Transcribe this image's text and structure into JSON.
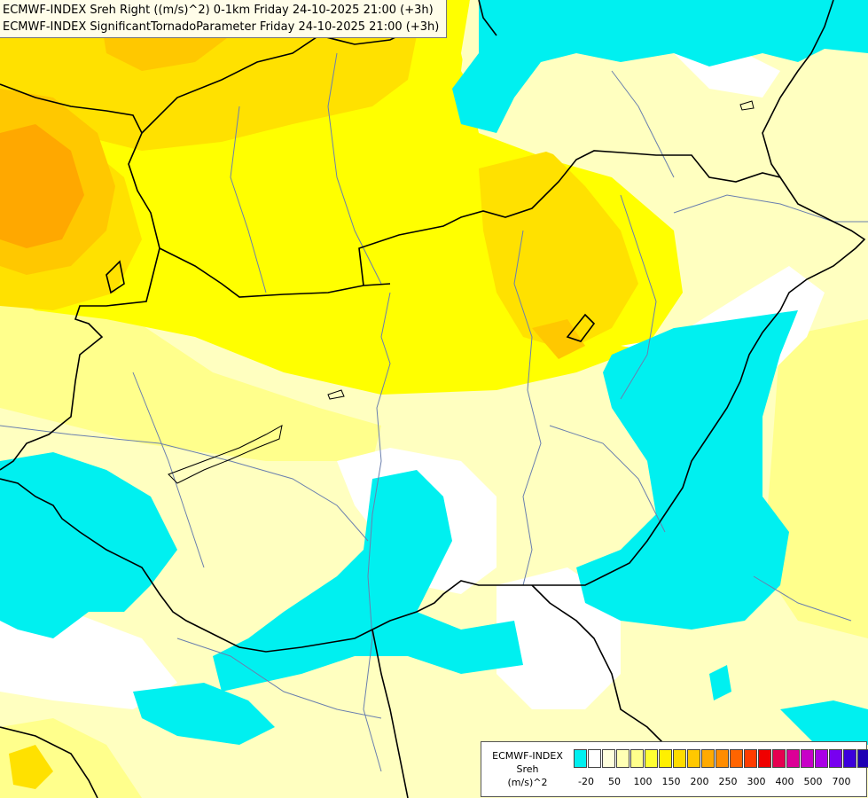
{
  "title": {
    "line1": "ECMWF-INDEX Sreh Right ((m/s)^2) 0-1km Friday 24-10-2025 21:00 (+3h)",
    "line2": "ECMWF-INDEX SignificantTornadoParameter Friday 24-10-2025 21:00 (+3h)"
  },
  "legend": {
    "source": "ECMWF-INDEX",
    "variable": "Sreh",
    "unit": "(m/s)^2",
    "colors": [
      "#00f0f0",
      "#ffffff",
      "#ffffdc",
      "#ffffb4",
      "#ffff8c",
      "#ffff32",
      "#fff000",
      "#ffdc00",
      "#ffc800",
      "#ffaa00",
      "#ff8c00",
      "#ff6400",
      "#ff3c00",
      "#f00000",
      "#e60050",
      "#dc0096",
      "#c800c8",
      "#aa00e6",
      "#7800f0",
      "#3c00dc",
      "#1e00b4",
      "#00008c"
    ],
    "ticks": [
      "-20",
      "50",
      "100",
      "150",
      "200",
      "250",
      "300",
      "400",
      "500",
      "700"
    ]
  },
  "map_colors": {
    "cyan": "#00f0f0",
    "white": "#ffffff",
    "pale_yellow": "#ffffc0",
    "light_yellow": "#ffff8c",
    "yellow": "#ffff00",
    "gold": "#ffe100",
    "orange_yellow": "#ffc800",
    "orange": "#ffa800",
    "border": "#000000",
    "river": "#6a7fae"
  }
}
